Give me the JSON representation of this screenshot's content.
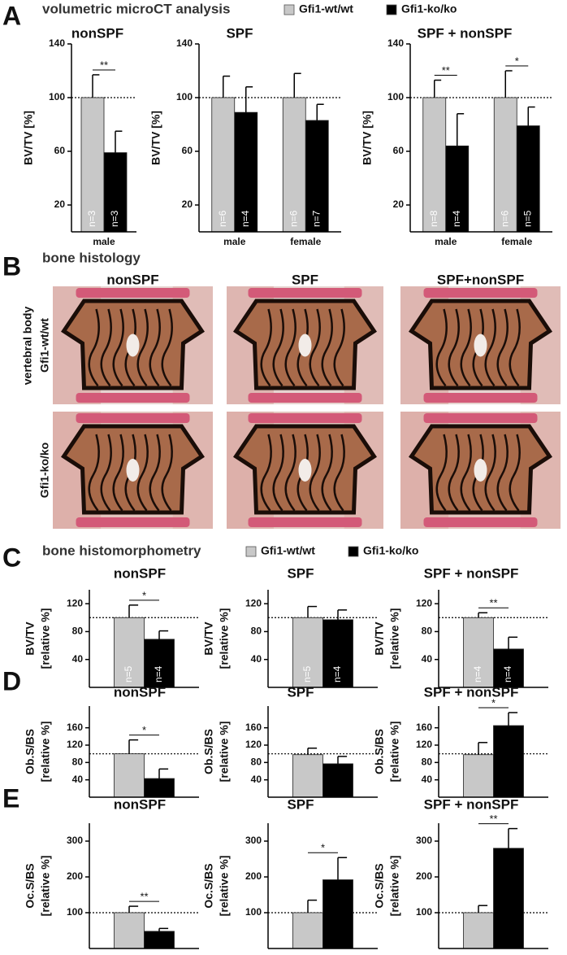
{
  "sections": [
    {
      "letter": "A",
      "title": "volumetric microCT analysis"
    },
    {
      "letter": "B",
      "title": "bone histology"
    },
    {
      "letter": "C",
      "title": "bone histomorphometry"
    },
    {
      "letter": "D"
    },
    {
      "letter": "E"
    }
  ],
  "legend": [
    {
      "name": "Gfi1-wt/wt",
      "color": "#c8c8c8"
    },
    {
      "name": "Gfi1-ko/ko",
      "color": "#000000"
    }
  ],
  "histology": {
    "columns": [
      "nonSPF",
      "SPF",
      "SPF+nonSPF"
    ],
    "row_group": "vertebral body",
    "rows": [
      "Gfi1-wt/wt",
      "Gfi1-ko/ko"
    ]
  },
  "chart_data": [
    {
      "type": "bar",
      "title": "nonSPF",
      "ylabel": "BV/TV [%]",
      "categories": [
        "male"
      ],
      "series": [
        {
          "color": "#c8c8c8",
          "values": [
            100
          ],
          "errors": [
            17
          ],
          "n_labels": [
            "n=3"
          ]
        },
        {
          "color": "#000000",
          "values": [
            59
          ],
          "errors": [
            16
          ],
          "n_labels": [
            "n=3"
          ]
        }
      ],
      "significance": [
        "**"
      ],
      "ylim": [
        0,
        140
      ],
      "yticks": [
        20,
        60,
        100,
        140
      ],
      "refline": 100
    },
    {
      "type": "bar",
      "title": "SPF",
      "ylabel": "BV/TV [%]",
      "categories": [
        "male",
        "female"
      ],
      "series": [
        {
          "color": "#c8c8c8",
          "values": [
            100,
            100
          ],
          "errors": [
            16,
            18
          ],
          "n_labels": [
            "n=6",
            "n=6"
          ]
        },
        {
          "color": "#000000",
          "values": [
            89,
            83
          ],
          "errors": [
            19,
            12
          ],
          "n_labels": [
            "n=4",
            "n=7"
          ]
        }
      ],
      "ylim": [
        0,
        140
      ],
      "yticks": [
        20,
        60,
        100,
        140
      ],
      "refline": 100
    },
    {
      "type": "bar",
      "title": "SPF + nonSPF",
      "ylabel": "BV/TV [%]",
      "categories": [
        "male",
        "female"
      ],
      "series": [
        {
          "color": "#c8c8c8",
          "values": [
            100,
            100
          ],
          "errors": [
            13,
            20
          ],
          "n_labels": [
            "n=8",
            "n=6"
          ]
        },
        {
          "color": "#000000",
          "values": [
            64,
            79
          ],
          "errors": [
            24,
            14
          ],
          "n_labels": [
            "n=4",
            "n=5"
          ]
        }
      ],
      "significance": [
        "**",
        "*"
      ],
      "ylim": [
        0,
        140
      ],
      "yticks": [
        20,
        60,
        100,
        140
      ],
      "refline": 100
    },
    {
      "type": "bar",
      "title": "nonSPF",
      "ylabel": [
        "BV/TV",
        "[relative %]"
      ],
      "categories": [
        null
      ],
      "series": [
        {
          "color": "#c8c8c8",
          "values": [
            100
          ],
          "errors": [
            18
          ],
          "n_labels": [
            "n=5"
          ]
        },
        {
          "color": "#000000",
          "values": [
            69
          ],
          "errors": [
            12
          ],
          "n_labels": [
            "n=4"
          ]
        }
      ],
      "significance": [
        "*"
      ],
      "ylim": [
        0,
        140
      ],
      "yticks": [
        40,
        80,
        120
      ],
      "refline": 100
    },
    {
      "type": "bar",
      "title": "SPF",
      "ylabel": [
        "BV/TV",
        "[relative %]"
      ],
      "categories": [
        null
      ],
      "series": [
        {
          "color": "#c8c8c8",
          "values": [
            100
          ],
          "errors": [
            16
          ],
          "n_labels": [
            "n=5"
          ]
        },
        {
          "color": "#000000",
          "values": [
            97
          ],
          "errors": [
            14
          ],
          "n_labels": [
            "n=4"
          ]
        }
      ],
      "ylim": [
        0,
        140
      ],
      "yticks": [
        40,
        80,
        120
      ],
      "refline": 100
    },
    {
      "type": "bar",
      "title": "SPF + nonSPF",
      "ylabel": [
        "BV/TV",
        "[relative %]"
      ],
      "categories": [
        null
      ],
      "series": [
        {
          "color": "#c8c8c8",
          "values": [
            100
          ],
          "errors": [
            7
          ],
          "n_labels": [
            "n=4"
          ]
        },
        {
          "color": "#000000",
          "values": [
            55
          ],
          "errors": [
            17
          ],
          "n_labels": [
            "n=4"
          ]
        }
      ],
      "significance": [
        "**"
      ],
      "ylim": [
        0,
        140
      ],
      "yticks": [
        40,
        80,
        120
      ],
      "refline": 100
    },
    {
      "type": "bar",
      "title": "nonSPF",
      "ylabel": [
        "Ob.S/BS",
        "[relative %]"
      ],
      "categories": [
        null
      ],
      "series": [
        {
          "color": "#c8c8c8",
          "values": [
            100
          ],
          "errors": [
            32
          ]
        },
        {
          "color": "#000000",
          "values": [
            43
          ],
          "errors": [
            22
          ]
        }
      ],
      "significance": [
        "*"
      ],
      "ylim": [
        0,
        210
      ],
      "yticks": [
        40,
        80,
        120,
        160
      ],
      "refline": 100
    },
    {
      "type": "bar",
      "title": "SPF",
      "ylabel": [
        "Ob.S/BS",
        "[relative %]"
      ],
      "categories": [
        null
      ],
      "series": [
        {
          "color": "#c8c8c8",
          "values": [
            98
          ],
          "errors": [
            15
          ]
        },
        {
          "color": "#000000",
          "values": [
            77
          ],
          "errors": [
            17
          ]
        }
      ],
      "ylim": [
        0,
        210
      ],
      "yticks": [
        40,
        80,
        120,
        160
      ],
      "refline": 100
    },
    {
      "type": "bar",
      "title": "SPF + nonSPF",
      "ylabel": [
        "Ob.S/BS",
        "[relative %]"
      ],
      "categories": [
        null
      ],
      "series": [
        {
          "color": "#c8c8c8",
          "values": [
            98
          ],
          "errors": [
            28
          ]
        },
        {
          "color": "#000000",
          "values": [
            165
          ],
          "errors": [
            30
          ]
        }
      ],
      "significance": [
        "*"
      ],
      "ylim": [
        0,
        210
      ],
      "yticks": [
        40,
        80,
        120,
        160
      ],
      "refline": 100
    },
    {
      "type": "bar",
      "title": "nonSPF",
      "ylabel": [
        "Oc.S/BS",
        "[relative %]"
      ],
      "categories": [
        null
      ],
      "series": [
        {
          "color": "#c8c8c8",
          "values": [
            100
          ],
          "errors": [
            18
          ]
        },
        {
          "color": "#000000",
          "values": [
            48
          ],
          "errors": [
            8
          ]
        }
      ],
      "significance": [
        "**"
      ],
      "ylim": [
        0,
        350
      ],
      "yticks": [
        100,
        200,
        300
      ],
      "refline": 100
    },
    {
      "type": "bar",
      "title": "SPF",
      "ylabel": [
        "Oc.S/BS",
        "[relative %]"
      ],
      "categories": [
        null
      ],
      "series": [
        {
          "color": "#c8c8c8",
          "values": [
            100
          ],
          "errors": [
            35
          ]
        },
        {
          "color": "#000000",
          "values": [
            192
          ],
          "errors": [
            62
          ]
        }
      ],
      "significance": [
        "*"
      ],
      "ylim": [
        0,
        350
      ],
      "yticks": [
        100,
        200,
        300
      ],
      "refline": 100
    },
    {
      "type": "bar",
      "title": "SPF + nonSPF",
      "ylabel": [
        "Oc.S/BS",
        "[relative %]"
      ],
      "categories": [
        null
      ],
      "series": [
        {
          "color": "#c8c8c8",
          "values": [
            100
          ],
          "errors": [
            20
          ]
        },
        {
          "color": "#000000",
          "values": [
            280
          ],
          "errors": [
            55
          ]
        }
      ],
      "significance": [
        "**"
      ],
      "ylim": [
        0,
        350
      ],
      "yticks": [
        100,
        200,
        300
      ],
      "refline": 100
    }
  ]
}
